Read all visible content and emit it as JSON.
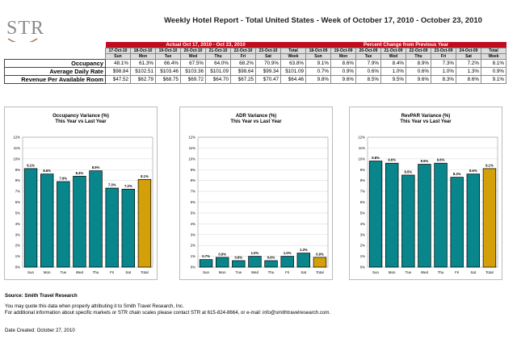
{
  "logo": {
    "text": "STR"
  },
  "title": "Weekly Hotel Report - Total United States - Week of October 17, 2010 - October 23, 2010",
  "table": {
    "actual_header": "Actual Oct 17, 2010 - Oct 23, 2010",
    "pct_header": "Percent Change from Previous Year",
    "actual_dates": [
      "17-Oct-10",
      "18-Oct-10",
      "19-Oct-10",
      "20-Oct-10",
      "21-Oct-10",
      "22-Oct-10",
      "23-Oct-10",
      "Total"
    ],
    "pct_dates": [
      "18-Oct-09",
      "19-Oct-09",
      "20-Oct-09",
      "21-Oct-09",
      "22-Oct-09",
      "23-Oct-09",
      "24-Oct-09",
      "Total"
    ],
    "days": [
      "Sun",
      "Mon",
      "Tue",
      "Wed",
      "Thu",
      "Fri",
      "Sat",
      "Week"
    ],
    "rows": [
      {
        "label": "Occupancy",
        "actual": [
          "48.1%",
          "61.3%",
          "66.4%",
          "67.5%",
          "64.0%",
          "68.2%",
          "70.9%",
          "63.8%"
        ],
        "pct": [
          "9.1%",
          "8.6%",
          "7.9%",
          "8.4%",
          "8.9%",
          "7.3%",
          "7.2%",
          "8.1%"
        ]
      },
      {
        "label": "Average Daily Rate",
        "actual": [
          "$98.84",
          "$102.51",
          "$103.46",
          "$103.36",
          "$101.09",
          "$98.64",
          "$99.34",
          "$101.09"
        ],
        "pct": [
          "0.7%",
          "0.9%",
          "0.6%",
          "1.0%",
          "0.6%",
          "1.0%",
          "1.3%",
          "0.9%"
        ]
      },
      {
        "label": "Revenue Per Available Room",
        "actual": [
          "$47.52",
          "$62.79",
          "$68.75",
          "$69.72",
          "$64.70",
          "$67.25",
          "$70.47",
          "$64.46"
        ],
        "pct": [
          "9.8%",
          "9.6%",
          "8.5%",
          "9.5%",
          "9.6%",
          "8.3%",
          "8.6%",
          "9.1%"
        ]
      }
    ]
  },
  "chart_data": [
    {
      "type": "bar",
      "title": "Occupancy Variance (%)",
      "subtitle": "This Year vs Last Year",
      "categories": [
        "Sun",
        "Mon",
        "Tue",
        "Wed",
        "Thu",
        "Fri",
        "Sat",
        "Total"
      ],
      "values": [
        9.1,
        8.6,
        7.9,
        8.4,
        8.9,
        7.3,
        7.2,
        8.1
      ],
      "labels": [
        "9.1%",
        "8.6%",
        "7.9%",
        "8.4%",
        "8.9%",
        "7.3%",
        "7.2%",
        "8.1%"
      ],
      "ylim": [
        0,
        12
      ],
      "yticks": [
        "0%",
        "1%",
        "2%",
        "3%",
        "4%",
        "5%",
        "6%",
        "7%",
        "8%",
        "9%",
        "10%",
        "11%",
        "12%"
      ],
      "grid": true
    },
    {
      "type": "bar",
      "title": "ADR Variance (%)",
      "subtitle": "This Year vs Last Year",
      "categories": [
        "Sun",
        "Mon",
        "Tue",
        "Wed",
        "Thu",
        "Fri",
        "Sat",
        "Total"
      ],
      "values": [
        0.7,
        0.9,
        0.6,
        1.0,
        0.6,
        1.0,
        1.3,
        0.9
      ],
      "labels": [
        "0.7%",
        "0.9%",
        "0.6%",
        "1.0%",
        "0.6%",
        "1.0%",
        "1.3%",
        "0.9%"
      ],
      "ylim": [
        0,
        12
      ],
      "yticks": [
        "0%",
        "1%",
        "2%",
        "3%",
        "4%",
        "5%",
        "6%",
        "7%",
        "8%",
        "9%",
        "10%",
        "11%",
        "12%"
      ],
      "grid": true
    },
    {
      "type": "bar",
      "title": "RevPAR Variance (%)",
      "subtitle": "This Year vs Last Year",
      "categories": [
        "Sun",
        "Mon",
        "Tue",
        "Wed",
        "Thu",
        "Fri",
        "Sat",
        "Total"
      ],
      "values": [
        9.8,
        9.6,
        8.5,
        9.5,
        9.6,
        8.3,
        8.6,
        9.1
      ],
      "labels": [
        "9.8%",
        "9.6%",
        "8.5%",
        "9.5%",
        "9.6%",
        "8.3%",
        "8.6%",
        "9.1%"
      ],
      "ylim": [
        0,
        12
      ],
      "yticks": [
        "0%",
        "1%",
        "2%",
        "3%",
        "4%",
        "5%",
        "6%",
        "7%",
        "8%",
        "9%",
        "10%",
        "11%",
        "12%"
      ],
      "grid": true
    }
  ],
  "colors": {
    "bar": "#08868c",
    "total_bar": "#d4a00a",
    "header": "#c00d1e"
  },
  "footer": {
    "source": "Source: Smith Travel Research",
    "line1": "You may quote this data when properly attributing it to Smith Travel Research, Inc.",
    "line2": "For additional information about specific markets or STR chain scales please contact STR at 615-824-8664, or e-mail: info@smithtravelresearch.com.",
    "date_created": "Date Created: October 27, 2010"
  }
}
